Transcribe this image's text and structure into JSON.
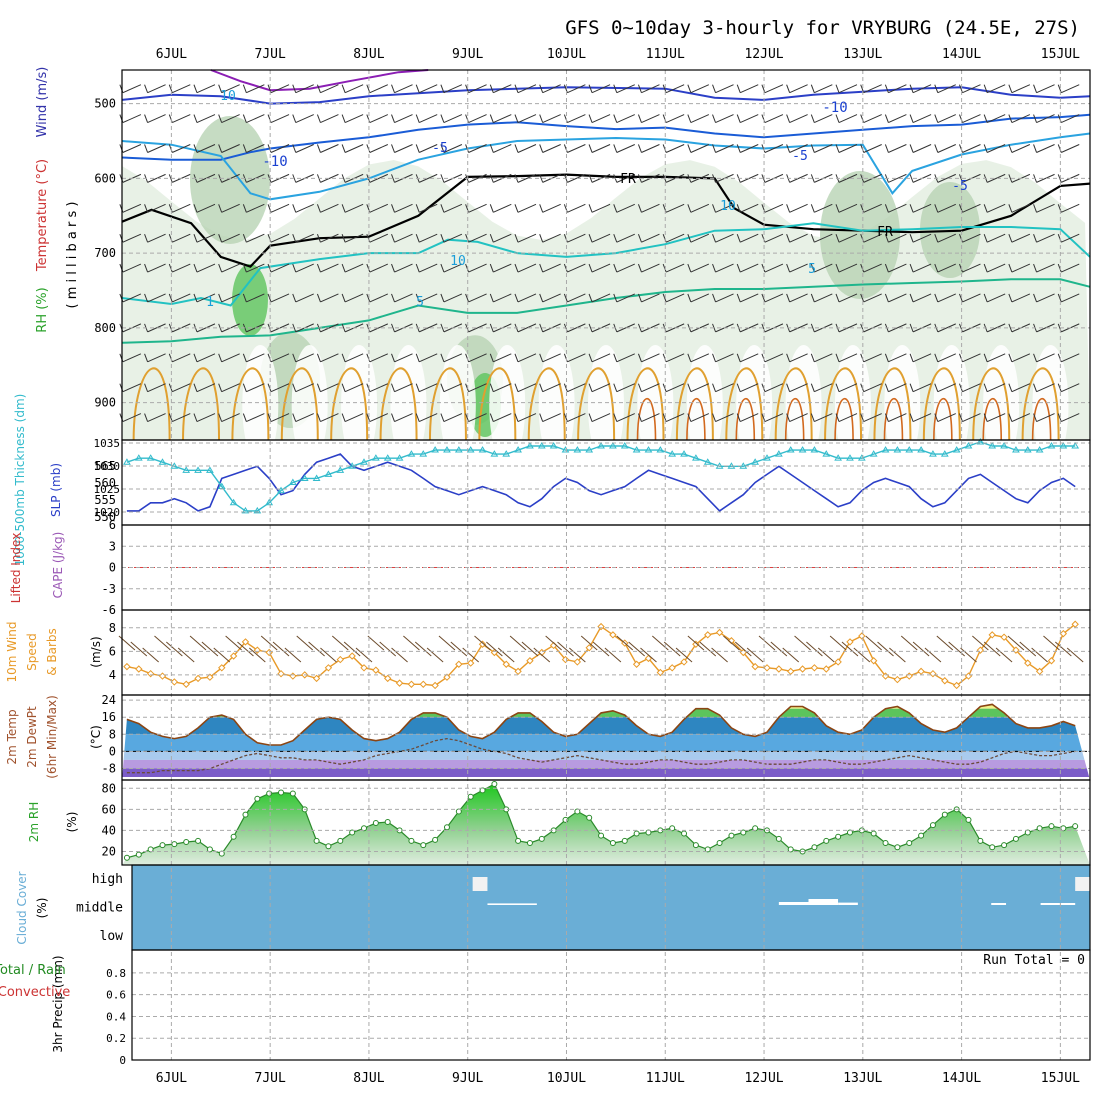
{
  "title": "GFS 0~10day 3-hourly for VRYBURG (24.5E, 27S)",
  "dates": [
    "6JUL",
    "7JUL",
    "8JUL",
    "9JUL",
    "10JUL",
    "11JUL",
    "12JUL",
    "13JUL",
    "14JUL",
    "15JUL"
  ],
  "colors": {
    "frame": "#000000",
    "grid": "#aaaaaa",
    "slp": "#2b3fc7",
    "thickness": "#33bbcc",
    "temp": "#8b4513",
    "wind10m": "#e89a28",
    "rh": "#33aa33",
    "cloud": "#6aaed6"
  },
  "panels": {
    "upper": {
      "ylabel_parts": [
        "RH (%)",
        "Temperature (°C)",
        "Wind (m/s)"
      ],
      "ylabel_axis": "( m i l l i b a r s )",
      "ticks": [
        "500",
        "600",
        "700",
        "800",
        "900"
      ],
      "contour_labels": [
        "10",
        "-10",
        "-10",
        "-5",
        "-5",
        "FR",
        "FR",
        "10",
        "10",
        "-5",
        "5",
        "5",
        "1"
      ]
    },
    "slp": {
      "ylabel_left": "1000-500mb Thickness (dm)",
      "ylabel_right": "SLP (mb)",
      "ticks_left": [
        "550",
        "555",
        "560",
        "565"
      ],
      "ticks_right": [
        "1020",
        "1025",
        "1030",
        "1035"
      ]
    },
    "cape": {
      "ylabel_left": "Lifted Index",
      "ylabel_right": "CAPE (J/kg)",
      "ticks": [
        "-6",
        "-3",
        "0",
        "3",
        "6"
      ]
    },
    "wind": {
      "ylabel_lines": [
        "10m Wind",
        "Speed",
        "& Barbs"
      ],
      "unit": "(m/s)",
      "ticks": [
        "4",
        "6",
        "8"
      ]
    },
    "temp": {
      "ylabel_lines": [
        "2m Temp",
        "2m DewPt",
        "(6hr Min/Max)"
      ],
      "unit": "(°C)",
      "ticks": [
        "-8",
        "0",
        "8",
        "16",
        "24"
      ]
    },
    "rh": {
      "ylabel": "2m RH",
      "unit": "(%)",
      "ticks": [
        "20",
        "40",
        "60",
        "80"
      ]
    },
    "cloud": {
      "ylabel": "Cloud Cover",
      "unit": "(%)",
      "levels": [
        "high",
        "middle",
        "low"
      ]
    },
    "precip": {
      "ylabel_lines": [
        "Total / Rain",
        "Convective"
      ],
      "ylabel_axis": "3hr Precip (mm)",
      "ticks": [
        "0",
        "0.2",
        "0.4",
        "0.6",
        "0.8"
      ],
      "run_total": "Run Total = 0"
    }
  },
  "chart_data": [
    {
      "type": "line",
      "name": "slp",
      "x_start": "5.5JUL",
      "x_step_days": 0.125,
      "ylabel": "SLP (mb)",
      "ylim": [
        1017,
        1035
      ],
      "values": [
        1019,
        1019,
        1021,
        1021,
        1022,
        1021,
        1019,
        1020,
        1027,
        1028,
        1029,
        1030,
        1027,
        1023,
        1024,
        1028,
        1031,
        1032,
        1033,
        1030,
        1029,
        1030,
        1031,
        1030,
        1029,
        1027,
        1025,
        1024,
        1023,
        1024,
        1025,
        1024,
        1023,
        1021,
        1020,
        1022,
        1025,
        1027,
        1026,
        1024,
        1023,
        1024,
        1025,
        1027,
        1029,
        1028,
        1027,
        1026,
        1025,
        1022,
        1019,
        1021,
        1023,
        1026,
        1028,
        1030,
        1028,
        1026,
        1024,
        1022,
        1020,
        1021,
        1024,
        1026,
        1027,
        1026,
        1025,
        1022,
        1020,
        1021,
        1024,
        1027,
        1028,
        1026,
        1024,
        1022,
        1021,
        1024,
        1026,
        1027,
        1025
      ]
    },
    {
      "type": "line",
      "name": "thickness",
      "ylabel": "1000-500mb Thickness (dm)",
      "ylim": [
        549,
        567
      ],
      "values": [
        563,
        564,
        564,
        563,
        562,
        561,
        561,
        561,
        557,
        553,
        551,
        551,
        553,
        556,
        558,
        559,
        559,
        560,
        561,
        562,
        563,
        564,
        564,
        564,
        565,
        565,
        566,
        566,
        566,
        566,
        566,
        565,
        565,
        566,
        567,
        567,
        567,
        566,
        566,
        566,
        567,
        567,
        567,
        566,
        566,
        566,
        565,
        565,
        564,
        563,
        562,
        562,
        562,
        563,
        564,
        565,
        566,
        566,
        566,
        565,
        564,
        564,
        564,
        565,
        566,
        566,
        566,
        566,
        565,
        565,
        566,
        567,
        568,
        567,
        567,
        566,
        566,
        566,
        567,
        567,
        567
      ]
    },
    {
      "type": "line",
      "name": "10m wind speed",
      "ylabel": "(m/s)",
      "ylim": [
        2.8,
        9
      ],
      "values": [
        4.7,
        4.5,
        4.1,
        3.9,
        3.4,
        3.2,
        3.7,
        3.8,
        4.6,
        5.6,
        6.8,
        6.1,
        5.9,
        4.1,
        3.9,
        4.0,
        3.7,
        4.6,
        5.3,
        5.6,
        4.6,
        4.4,
        3.7,
        3.3,
        3.2,
        3.2,
        3.1,
        3.8,
        4.9,
        5.0,
        6.6,
        5.9,
        4.9,
        4.3,
        5.2,
        5.9,
        6.5,
        5.3,
        5.1,
        6.3,
        8.1,
        7.4,
        6.7,
        4.9,
        5.4,
        4.2,
        4.6,
        5.1,
        6.6,
        7.4,
        7.6,
        6.9,
        5.9,
        4.7,
        4.6,
        4.5,
        4.3,
        4.5,
        4.6,
        4.5,
        5.1,
        6.8,
        7.3,
        5.2,
        3.9,
        3.6,
        3.9,
        4.3,
        4.1,
        3.5,
        3.1,
        3.9,
        6.1,
        7.4,
        7.2,
        6.1,
        5.0,
        4.3,
        5.2,
        7.5,
        8.3
      ]
    },
    {
      "type": "area",
      "name": "2m temperature",
      "ylabel": "(°C)",
      "ylim": [
        -12,
        25
      ],
      "values": [
        15,
        13,
        9,
        7,
        6,
        7,
        11,
        16,
        17,
        15,
        8,
        4,
        3,
        3,
        5,
        10,
        15,
        16,
        15,
        10,
        6,
        5,
        6,
        9,
        15,
        18,
        18,
        16,
        10,
        7,
        6,
        9,
        15,
        18,
        18,
        14,
        9,
        7,
        8,
        13,
        18,
        19,
        17,
        12,
        8,
        7,
        9,
        15,
        20,
        20,
        17,
        11,
        8,
        7,
        9,
        16,
        21,
        21,
        18,
        12,
        9,
        8,
        10,
        16,
        20,
        21,
        18,
        13,
        10,
        9,
        11,
        16,
        21,
        22,
        18,
        13,
        11,
        11,
        12,
        14,
        12
      ]
    },
    {
      "type": "line",
      "name": "2m dew point",
      "ylabel": "(°C)",
      "values": [
        -10,
        -10,
        -10,
        -9,
        -9,
        -9,
        -9,
        -8,
        -6,
        -4,
        -2,
        -1,
        -2,
        -3,
        -3,
        -4,
        -4,
        -5,
        -6,
        -5,
        -4,
        -2,
        -1,
        0,
        1,
        3,
        5,
        6,
        5,
        3,
        1,
        0,
        -1,
        -3,
        -4,
        -5,
        -4,
        -3,
        -2,
        -3,
        -4,
        -5,
        -6,
        -6,
        -5,
        -4,
        -4,
        -5,
        -6,
        -6,
        -5,
        -4,
        -4,
        -5,
        -6,
        -6,
        -6,
        -5,
        -4,
        -4,
        -5,
        -6,
        -6,
        -5,
        -4,
        -3,
        -2,
        -3,
        -4,
        -5,
        -6,
        -6,
        -5,
        -3,
        -1,
        0,
        -1,
        -2,
        -2,
        -1,
        0
      ]
    },
    {
      "type": "area",
      "name": "2m RH",
      "ylabel": "(%)",
      "ylim": [
        10,
        85
      ],
      "values": [
        14,
        17,
        22,
        26,
        27,
        29,
        30,
        22,
        18,
        34,
        55,
        70,
        75,
        76,
        75,
        60,
        30,
        25,
        30,
        38,
        42,
        47,
        48,
        40,
        30,
        26,
        31,
        43,
        58,
        72,
        78,
        84,
        60,
        30,
        28,
        32,
        40,
        50,
        58,
        52,
        35,
        28,
        30,
        37,
        38,
        40,
        42,
        37,
        26,
        22,
        28,
        35,
        38,
        42,
        40,
        32,
        22,
        20,
        24,
        30,
        34,
        38,
        40,
        37,
        28,
        24,
        28,
        35,
        45,
        55,
        60,
        50,
        30,
        24,
        26,
        32,
        38,
        42,
        44,
        42,
        44
      ]
    },
    {
      "type": "bar",
      "name": "cloud cover (high layer gaps)",
      "ylabel": "(%)",
      "segments": [
        {
          "start_day": 9.05,
          "end_day": 9.2,
          "level": "high",
          "value": 100
        },
        {
          "start_day": 9.2,
          "end_day": 9.7,
          "level": "high",
          "value": 8
        },
        {
          "start_day": 12.15,
          "end_day": 12.45,
          "level": "high",
          "value": 15
        },
        {
          "start_day": 12.45,
          "end_day": 12.75,
          "level": "high",
          "value": 30
        },
        {
          "start_day": 12.75,
          "end_day": 12.95,
          "level": "high",
          "value": 12
        },
        {
          "start_day": 14.3,
          "end_day": 14.45,
          "level": "high",
          "value": 10
        },
        {
          "start_day": 14.8,
          "end_day": 15.15,
          "level": "high",
          "value": 10
        },
        {
          "start_day": 15.15,
          "end_day": 15.3,
          "level": "high",
          "value": 100
        }
      ]
    },
    {
      "type": "bar",
      "name": "3hr precip",
      "ylabel": "3hr Precip (mm)",
      "ylim": [
        0,
        0.95
      ],
      "values": []
    }
  ]
}
